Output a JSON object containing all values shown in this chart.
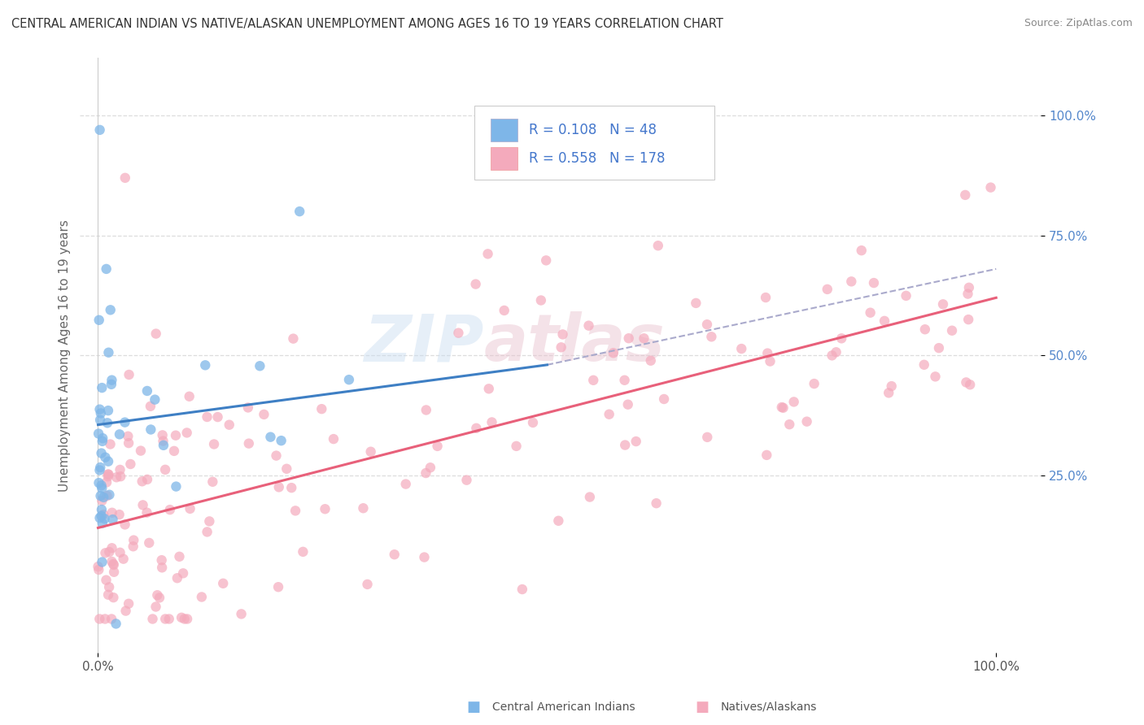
{
  "title": "CENTRAL AMERICAN INDIAN VS NATIVE/ALASKAN UNEMPLOYMENT AMONG AGES 16 TO 19 YEARS CORRELATION CHART",
  "source": "Source: ZipAtlas.com",
  "ylabel": "Unemployment Among Ages 16 to 19 years",
  "xlim": [
    -0.02,
    1.05
  ],
  "ylim": [
    -0.12,
    1.12
  ],
  "y_ticks": [
    0.25,
    0.5,
    0.75,
    1.0
  ],
  "y_tick_labels": [
    "25.0%",
    "50.0%",
    "75.0%",
    "100.0%"
  ],
  "x_ticks": [
    0.0,
    1.0
  ],
  "x_tick_labels": [
    "0.0%",
    "100.0%"
  ],
  "watermark": "ZIPatlas",
  "legend_r_blue": "0.108",
  "legend_n_blue": "48",
  "legend_r_pink": "0.558",
  "legend_n_pink": "178",
  "blue_color": "#7EB6E8",
  "pink_color": "#F4AABC",
  "blue_line_color": "#3E7FC4",
  "pink_line_color": "#E8607A",
  "dashed_line_color": "#AAAACC",
  "blue_trend_y0": 0.355,
  "blue_trend_y1": 0.48,
  "blue_trend_x0": 0.0,
  "blue_trend_x1": 0.5,
  "pink_trend_y0": 0.14,
  "pink_trend_y1": 0.62,
  "dashed_trend_y0": 0.48,
  "dashed_trend_y1": 0.68,
  "dashed_trend_x0": 0.5,
  "dashed_trend_x1": 1.0,
  "background_color": "#FFFFFF",
  "grid_color": "#DDDDDD",
  "tick_color": "#5588CC",
  "ylabel_color": "#666666"
}
